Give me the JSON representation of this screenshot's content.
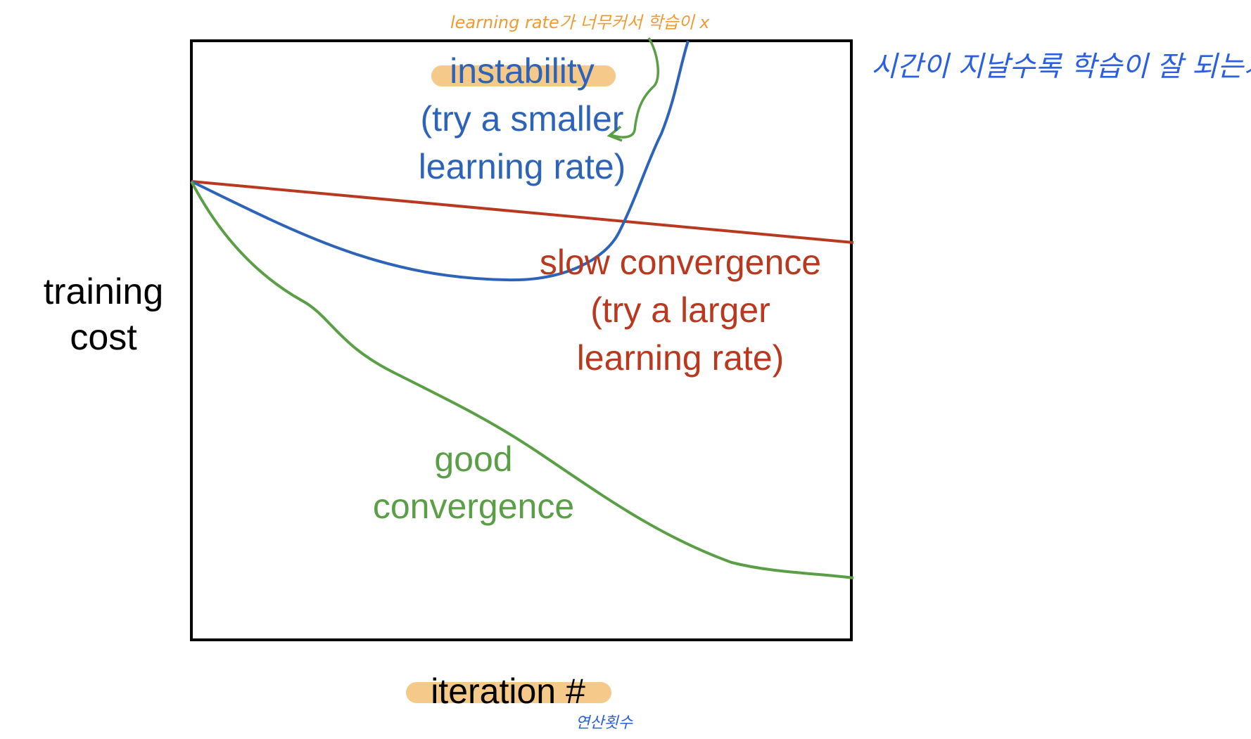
{
  "colors": {
    "frame": "#000000",
    "instability": "#2d64b8",
    "slow": "#b8391f",
    "good": "#5a9e46",
    "highlight": "#f5c98a",
    "handwriting_orange": "#ef9b32",
    "handwriting_blue": "#2a5fe0"
  },
  "axes": {
    "ylabel_line1": "training",
    "ylabel_line2": "cost",
    "xlabel": "iteration #"
  },
  "curves": {
    "instability": {
      "line1": "instability",
      "line2": "(try a smaller",
      "line3": "learning rate)"
    },
    "slow": {
      "line1": "slow convergence",
      "line2": "(try a larger",
      "line3": "learning rate)"
    },
    "good": {
      "line1": "good",
      "line2": "convergence"
    }
  },
  "annotations": {
    "top_note": "learning rate가 너무커서 학습이 x",
    "right_note": "시간이 지날수록 학습이 잘 되는가?",
    "xlabel_note": "연산횟수"
  }
}
